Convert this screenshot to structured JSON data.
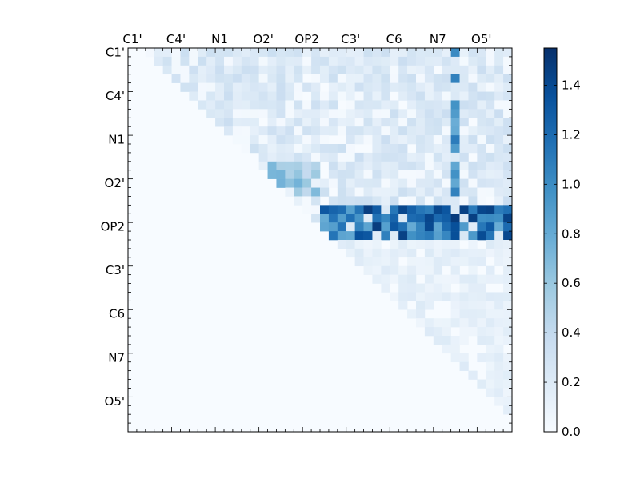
{
  "chart_data": {
    "type": "heatmap",
    "title": "",
    "xlabel": "",
    "ylabel": "",
    "grid_size": 44,
    "x_tick_labels": [
      "C1'",
      "C4'",
      "N1",
      "O2'",
      "OP2",
      "C3'",
      "C6",
      "N7",
      "O5'"
    ],
    "y_tick_labels": [
      "C1'",
      "C4'",
      "N1",
      "O2'",
      "OP2",
      "C3'",
      "C6",
      "N7",
      "O5'"
    ],
    "x_label_position": "top",
    "label_stride": 5,
    "matrix": "upper-triangular",
    "colormap": "Blues",
    "color_low": "#f7fbff",
    "color_high": "#08306b",
    "colorbar": {
      "range": [
        0.0,
        1.55
      ],
      "tick_labels": [
        "0.0",
        "0.2",
        "0.4",
        "0.6",
        "0.8",
        "1.0",
        "1.2",
        "1.4"
      ],
      "placement": "right"
    },
    "highlight_rows": [
      {
        "rows": [
          18,
          21
        ],
        "col_start": 22,
        "col_end": 43,
        "peak": 1.5
      },
      {
        "rows": [
          13,
          16
        ],
        "col_start": 16,
        "col_end": 21,
        "peak": 0.75
      }
    ],
    "highlight_cols": [
      {
        "col": 37,
        "row_start": 0,
        "row_end": 21,
        "peak": 1.1
      },
      {
        "col": 40,
        "row_start": 18,
        "row_end": 21,
        "peak": 1.4
      }
    ]
  }
}
